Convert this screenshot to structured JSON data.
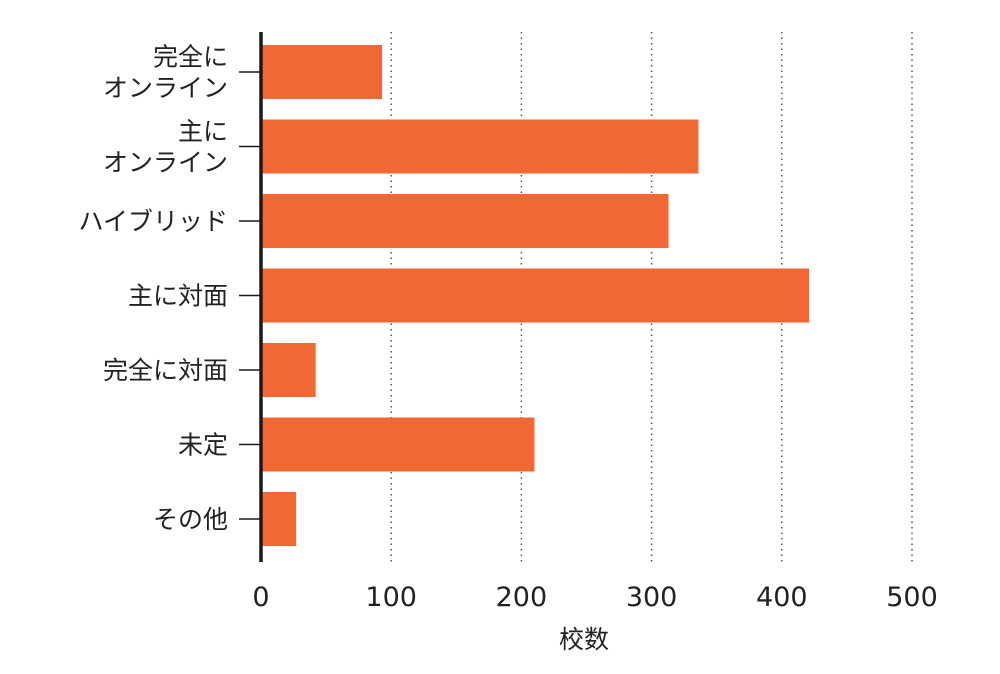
{
  "chart_data": {
    "type": "bar",
    "orientation": "horizontal",
    "categories": [
      [
        "完全に",
        "オンライン"
      ],
      [
        "主に",
        "オンライン"
      ],
      [
        "ハイブリッド"
      ],
      [
        "主に対面"
      ],
      [
        "完全に対面"
      ],
      [
        "未定"
      ],
      [
        "その他"
      ]
    ],
    "values": [
      93,
      336,
      313,
      421,
      42,
      210,
      27
    ],
    "xlabel": "校数",
    "xlim": [
      0,
      500
    ],
    "xticks": [
      "0",
      "100",
      "200",
      "300",
      "400",
      "500"
    ],
    "grid": "vertical dotted",
    "colors": {
      "bar": "#f26835",
      "axis": "#1a1a1a",
      "grid": "#555555",
      "text": "#222222"
    }
  }
}
